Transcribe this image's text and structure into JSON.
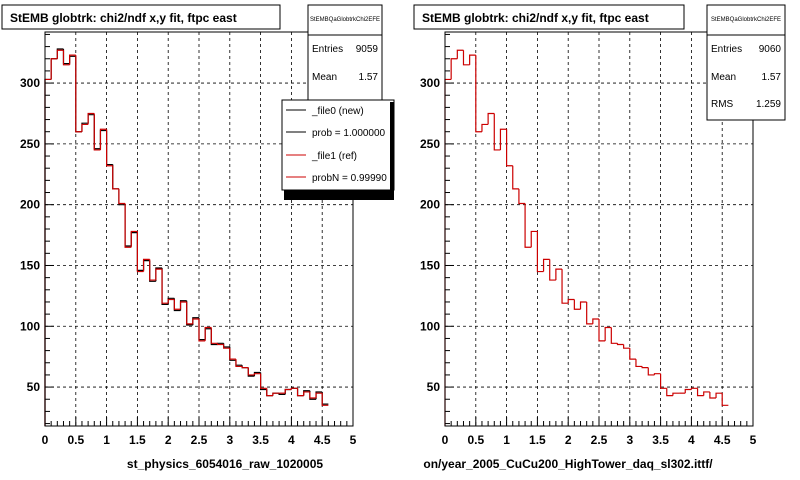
{
  "colors": {
    "new": "#000000",
    "ref": "#cc0000",
    "grid": "#000000",
    "frame": "#000000"
  },
  "footer": "",
  "chart_data": [
    {
      "type": "histogram",
      "title": "StEMB globtrk: chi2/ndf x,y fit, ftpc east",
      "xlabel": "st_physics_6054016_raw_1020005",
      "xlim": [
        0,
        5
      ],
      "ylim": [
        18,
        342
      ],
      "x_ticks": [
        "0",
        "0.5",
        "1",
        "1.5",
        "2",
        "2.5",
        "3",
        "3.5",
        "4",
        "4.5",
        "5"
      ],
      "y_ticks": [
        "50",
        "100",
        "150",
        "200",
        "250",
        "300"
      ],
      "grid": true,
      "bin_width": 0.1,
      "stats": {
        "name": "StEMBQaGlobtrkChi2EFE",
        "entries_label": "Entries",
        "entries": "9059",
        "mean_label": "Mean",
        "mean": "1.57"
      },
      "legend": {
        "position": "top-right",
        "entries": [
          "_file0 (new)",
          "prob = 1.000000",
          "_file1 (ref)",
          "probN = 0.99990"
        ]
      },
      "series": [
        {
          "name": "_file0 (new)",
          "values": [
            303,
            320,
            328,
            316,
            322,
            260,
            267,
            274,
            246,
            261,
            233,
            213,
            200,
            166,
            177,
            146,
            154,
            137,
            148,
            118,
            123,
            113,
            121,
            101,
            107,
            89,
            98,
            85,
            86,
            83,
            72,
            68,
            66,
            59,
            62,
            48,
            43,
            45,
            44,
            48,
            49,
            43,
            47,
            40,
            46,
            36
          ]
        },
        {
          "name": "_file1 (ref)",
          "values": [
            303,
            320,
            327,
            315,
            323,
            260,
            266,
            275,
            245,
            262,
            232,
            213,
            201,
            165,
            178,
            145,
            155,
            138,
            147,
            119,
            122,
            114,
            120,
            102,
            106,
            88,
            99,
            86,
            85,
            82,
            73,
            67,
            66,
            60,
            61,
            49,
            43,
            45,
            45,
            48,
            49,
            43,
            46,
            41,
            45,
            35
          ]
        }
      ]
    },
    {
      "type": "histogram",
      "title": "StEMB globtrk: chi2/ndf x,y fit, ftpc east",
      "xlabel": "on/year_2005_CuCu200_HighTower_daq_sl302.ittf/",
      "xlim": [
        0,
        5
      ],
      "ylim": [
        18,
        342
      ],
      "x_ticks": [
        "0",
        "0.5",
        "1",
        "1.5",
        "2",
        "2.5",
        "3",
        "3.5",
        "4",
        "4.5",
        "5"
      ],
      "y_ticks": [
        "50",
        "100",
        "150",
        "200",
        "250",
        "300"
      ],
      "grid": true,
      "bin_width": 0.1,
      "stats": {
        "name": "StEMBQaGlobtrkChi2EFE",
        "entries_label": "Entries",
        "entries": "9060",
        "mean_label": "Mean",
        "mean": "1.57",
        "rms_label": "RMS",
        "rms": "1.259"
      },
      "series": [
        {
          "name": "",
          "values": [
            303,
            320,
            327,
            315,
            323,
            260,
            266,
            275,
            245,
            262,
            232,
            213,
            201,
            165,
            178,
            145,
            155,
            138,
            147,
            119,
            122,
            114,
            120,
            102,
            106,
            88,
            99,
            86,
            85,
            82,
            73,
            67,
            66,
            60,
            61,
            49,
            43,
            45,
            45,
            48,
            49,
            43,
            46,
            41,
            45,
            35
          ]
        }
      ]
    }
  ]
}
